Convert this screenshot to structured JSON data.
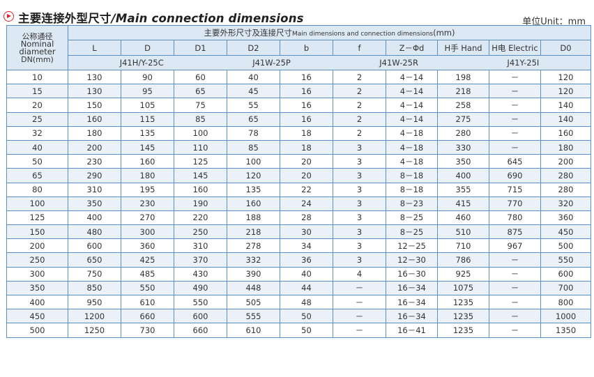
{
  "header": {
    "title_cn": "主要连接外型尺寸",
    "title_en": "/Main connection dimensions",
    "unit": "单位Unit：mm"
  },
  "table": {
    "group_header_cn": "主要外形尺寸及连接尺寸",
    "group_header_en": "Main dimensions and connection dimensions",
    "group_header_unit": "(mm)",
    "dn_header": [
      "公称通径",
      "Nominal diameter",
      "DN(mm)"
    ],
    "columns": [
      "L",
      "D",
      "D1",
      "D2",
      "b",
      "f",
      "Z－Φd",
      "H手 Hand",
      "H电 Electric",
      "D0"
    ],
    "models": [
      "J41H/Y-25C",
      "J41W-25P",
      "J41W-25R",
      "J41Y-25I"
    ],
    "rows": [
      [
        "10",
        "130",
        "90",
        "60",
        "40",
        "16",
        "2",
        "4－14",
        "198",
        "－",
        "120"
      ],
      [
        "15",
        "130",
        "95",
        "65",
        "45",
        "16",
        "2",
        "4－14",
        "218",
        "－",
        "120"
      ],
      [
        "20",
        "150",
        "105",
        "75",
        "55",
        "16",
        "2",
        "4－14",
        "258",
        "－",
        "140"
      ],
      [
        "25",
        "160",
        "115",
        "85",
        "65",
        "16",
        "2",
        "4－14",
        "275",
        "－",
        "140"
      ],
      [
        "32",
        "180",
        "135",
        "100",
        "78",
        "18",
        "2",
        "4－18",
        "280",
        "－",
        "160"
      ],
      [
        "40",
        "200",
        "145",
        "110",
        "85",
        "18",
        "3",
        "4－18",
        "330",
        "－",
        "180"
      ],
      [
        "50",
        "230",
        "160",
        "125",
        "100",
        "20",
        "3",
        "4－18",
        "350",
        "645",
        "200"
      ],
      [
        "65",
        "290",
        "180",
        "145",
        "120",
        "20",
        "3",
        "8－18",
        "400",
        "690",
        "280"
      ],
      [
        "80",
        "310",
        "195",
        "160",
        "135",
        "22",
        "3",
        "8－18",
        "355",
        "715",
        "280"
      ],
      [
        "100",
        "350",
        "230",
        "190",
        "160",
        "24",
        "3",
        "8－23",
        "415",
        "770",
        "320"
      ],
      [
        "125",
        "400",
        "270",
        "220",
        "188",
        "28",
        "3",
        "8－25",
        "460",
        "780",
        "360"
      ],
      [
        "150",
        "480",
        "300",
        "250",
        "218",
        "30",
        "3",
        "8－25",
        "510",
        "875",
        "450"
      ],
      [
        "200",
        "600",
        "360",
        "310",
        "278",
        "34",
        "3",
        "12－25",
        "710",
        "967",
        "500"
      ],
      [
        "250",
        "650",
        "425",
        "370",
        "332",
        "36",
        "3",
        "12－30",
        "786",
        "－",
        "550"
      ],
      [
        "300",
        "750",
        "485",
        "430",
        "390",
        "40",
        "4",
        "16－30",
        "925",
        "－",
        "600"
      ],
      [
        "350",
        "850",
        "550",
        "490",
        "448",
        "44",
        "－",
        "16－34",
        "1075",
        "－",
        "700"
      ],
      [
        "400",
        "950",
        "610",
        "550",
        "505",
        "48",
        "－",
        "16－34",
        "1235",
        "－",
        "800"
      ],
      [
        "450",
        "1200",
        "660",
        "600",
        "555",
        "50",
        "－",
        "16－34",
        "1235",
        "－",
        "1000"
      ],
      [
        "500",
        "1250",
        "730",
        "660",
        "610",
        "50",
        "－",
        "16－41",
        "1235",
        "－",
        "1350"
      ]
    ]
  }
}
